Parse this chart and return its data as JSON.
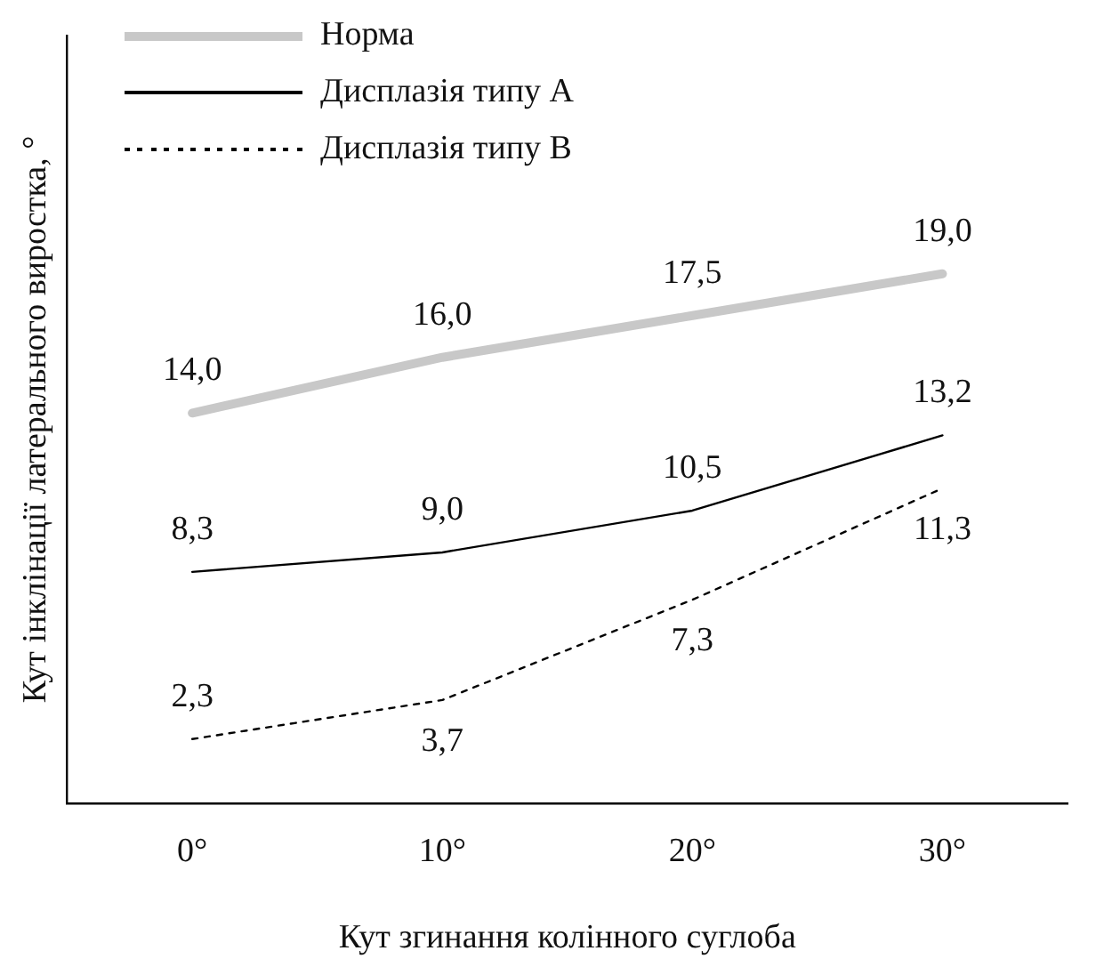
{
  "chart_data": {
    "type": "line",
    "xlabel": "Кут згинання колінного суглоба",
    "ylabel": "Кут інклінації латерального виростка, °",
    "categories": [
      "0°",
      "10°",
      "20°",
      "30°"
    ],
    "tick_labels": "x",
    "legend": "top left",
    "marker": "none",
    "grid": false,
    "series": [
      {
        "name": "Норма",
        "color": "#c8c8c8",
        "line_style": "solid",
        "values": [
          14.0,
          16.0,
          17.5,
          19.0
        ],
        "value_labels": [
          "14,0",
          "16,0",
          "17,5",
          "19,0"
        ]
      },
      {
        "name": "Дисплазія типу А",
        "color": "#000000",
        "line_style": "solid",
        "values": [
          8.3,
          9.0,
          10.5,
          13.2
        ],
        "value_labels": [
          "8,3",
          "9,0",
          "10,5",
          "13,2"
        ]
      },
      {
        "name": "Дисплазія типу В",
        "color": "#000000",
        "line_style": "dotted",
        "values": [
          2.3,
          3.7,
          7.3,
          11.3
        ],
        "value_labels": [
          "2,3",
          "3,7",
          "7,3",
          "11,3"
        ]
      }
    ]
  }
}
